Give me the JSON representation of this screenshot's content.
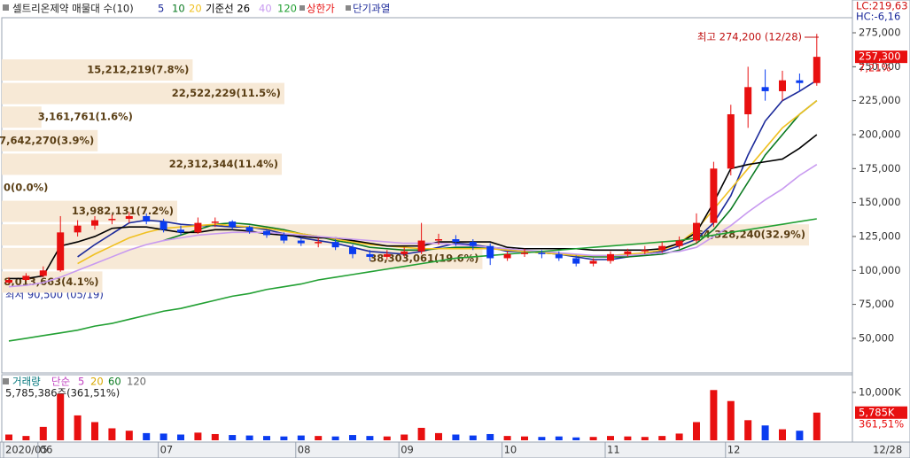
{
  "chart_data": {
    "type": "candlestick",
    "title": "셀트리온제약 매물대 수(10)",
    "categories": [
      "2020/05",
      null,
      "06",
      null,
      null,
      null,
      null,
      null,
      null,
      "07",
      null,
      null,
      null,
      null,
      null,
      null,
      null,
      "08",
      null,
      null,
      null,
      null,
      null,
      "09",
      null,
      null,
      null,
      null,
      null,
      "10",
      null,
      null,
      null,
      null,
      null,
      "11",
      null,
      null,
      null,
      null,
      null,
      null,
      "12",
      null,
      null,
      null,
      null,
      null
    ],
    "open": [
      91000,
      93000,
      96000,
      100000,
      128000,
      133000,
      137000,
      138000,
      140000,
      136000,
      130000,
      128000,
      135000,
      136000,
      132000,
      129000,
      126000,
      122000,
      120000,
      121000,
      117000,
      112000,
      110000,
      112000,
      114000,
      122000,
      123000,
      121000,
      118000,
      109000,
      112000,
      113000,
      112000,
      109000,
      105000,
      107000,
      112000,
      114000,
      115000,
      118000,
      122000,
      135000,
      175000,
      215000,
      235000,
      232000,
      240000,
      238000
    ],
    "high": [
      95000,
      98000,
      103000,
      140000,
      137000,
      140000,
      141000,
      143000,
      142000,
      138000,
      133000,
      139000,
      139000,
      137000,
      133000,
      130000,
      128000,
      124000,
      124000,
      123000,
      119000,
      115000,
      115000,
      117000,
      135000,
      127000,
      126000,
      123000,
      120000,
      114000,
      116000,
      115000,
      114000,
      111000,
      109000,
      114000,
      116000,
      118000,
      121000,
      125000,
      142000,
      180000,
      222000,
      250000,
      248000,
      247000,
      245000,
      274200
    ],
    "low": [
      90500,
      92000,
      95000,
      99000,
      125000,
      130000,
      134000,
      135000,
      134000,
      128000,
      126000,
      127000,
      132000,
      130000,
      127000,
      124000,
      120000,
      118000,
      117000,
      115000,
      109000,
      107000,
      108000,
      110000,
      112000,
      119000,
      118000,
      115000,
      104000,
      107000,
      110000,
      109000,
      107000,
      103000,
      103000,
      105000,
      110000,
      112000,
      113000,
      116000,
      120000,
      132000,
      170000,
      205000,
      225000,
      225000,
      232000,
      236000
    ],
    "close": [
      93000,
      96000,
      100000,
      128000,
      133000,
      137000,
      138000,
      140000,
      136000,
      130000,
      128000,
      135000,
      136000,
      132000,
      129000,
      126000,
      122000,
      120000,
      121000,
      117000,
      112000,
      110000,
      112000,
      114000,
      122000,
      123000,
      121000,
      118000,
      109000,
      112000,
      113000,
      112000,
      109000,
      105000,
      107000,
      112000,
      114000,
      115000,
      118000,
      122000,
      135000,
      175000,
      215000,
      235000,
      232000,
      240000,
      238000,
      257300
    ],
    "up_color": "#e81010",
    "down_color": "#0a3cf0",
    "series": [
      {
        "name": "5",
        "color": "#1c2a9a",
        "values": [
          null,
          null,
          null,
          null,
          110000,
          119000,
          127000,
          135000,
          137000,
          136000,
          134000,
          133000,
          133000,
          132000,
          132000,
          130000,
          127000,
          124000,
          122000,
          120000,
          117000,
          114000,
          113000,
          112000,
          114000,
          117000,
          120000,
          119000,
          117000,
          114000,
          114000,
          113000,
          112000,
          110000,
          108000,
          108000,
          110000,
          112000,
          114000,
          118000,
          123000,
          135000,
          155000,
          185000,
          210000,
          225000,
          232000,
          240000
        ]
      },
      {
        "name": "10",
        "color": "#0a7a20",
        "values": [
          null,
          null,
          null,
          null,
          null,
          null,
          null,
          null,
          null,
          122000,
          126000,
          130000,
          134000,
          135000,
          134000,
          132000,
          130000,
          127000,
          125000,
          122000,
          120000,
          117000,
          116000,
          115000,
          115000,
          116000,
          117000,
          117000,
          117000,
          116000,
          114000,
          113000,
          112000,
          111000,
          110000,
          110000,
          110000,
          111000,
          112000,
          115000,
          120000,
          130000,
          145000,
          165000,
          185000,
          200000,
          215000,
          225000
        ]
      },
      {
        "name": "20",
        "color": "#f0c020",
        "values": [
          null,
          null,
          null,
          null,
          105000,
          112000,
          118000,
          124000,
          128000,
          131000,
          132000,
          133000,
          134000,
          133000,
          132000,
          131000,
          129000,
          127000,
          125000,
          123000,
          121000,
          119000,
          118000,
          117000,
          116000,
          116000,
          116000,
          116000,
          116000,
          115000,
          114000,
          113000,
          112000,
          111000,
          111000,
          111000,
          112000,
          113000,
          115000,
          120000,
          130000,
          145000,
          160000,
          175000,
          190000,
          205000,
          215000,
          225000
        ]
      },
      {
        "name": "기준선 26",
        "color": "#000000",
        "values": [
          94000,
          94000,
          96000,
          118000,
          121000,
          125000,
          131000,
          132000,
          132000,
          130000,
          128000,
          128000,
          130000,
          130000,
          129000,
          127000,
          126000,
          125000,
          124000,
          124000,
          122000,
          120000,
          118000,
          118000,
          118000,
          121000,
          121000,
          121000,
          121000,
          117000,
          116000,
          116000,
          116000,
          116000,
          115000,
          115000,
          115000,
          115000,
          116000,
          120000,
          128000,
          150000,
          175000,
          178000,
          180000,
          182000,
          190000,
          200000
        ]
      },
      {
        "name": "40",
        "color": "#c89af0",
        "values": [
          88000,
          89000,
          91000,
          95000,
          100000,
          105000,
          110000,
          115000,
          119000,
          122000,
          124000,
          126000,
          127000,
          128000,
          128000,
          128000,
          127000,
          126000,
          125000,
          124000,
          123000,
          122000,
          121000,
          120000,
          120000,
          120000,
          119000,
          118000,
          117000,
          116000,
          115000,
          114000,
          113000,
          112000,
          111000,
          111000,
          111000,
          112000,
          113000,
          114000,
          117000,
          125000,
          133000,
          143000,
          152000,
          160000,
          170000,
          178000
        ]
      },
      {
        "name": "120",
        "color": "#22a033",
        "values": [
          48000,
          50000,
          52000,
          54000,
          56000,
          59000,
          61000,
          64000,
          67000,
          70000,
          72000,
          75000,
          78000,
          81000,
          83000,
          86000,
          88000,
          90000,
          93000,
          95000,
          97000,
          99000,
          101000,
          103000,
          105000,
          107000,
          109000,
          110000,
          111000,
          112000,
          113000,
          114000,
          115000,
          116000,
          117000,
          118000,
          119000,
          120000,
          121000,
          122000,
          124000,
          126000,
          128000,
          130000,
          132000,
          134000,
          136000,
          138000
        ]
      }
    ],
    "extra_legend": [
      {
        "name": "상한가",
        "color": "#e81010"
      },
      {
        "name": "단기과열",
        "color": "#1c2a9a"
      }
    ],
    "ylim": [
      24500,
      286100
    ],
    "yticks": [
      {
        "value": 275000,
        "label": "275,000"
      },
      {
        "value": 250000,
        "label": "250,000"
      },
      {
        "value": 225000,
        "label": "225,000"
      },
      {
        "value": 200000,
        "label": "200,000"
      },
      {
        "value": 175000,
        "label": "175,000"
      },
      {
        "value": 150000,
        "label": "150,000"
      },
      {
        "value": 125000,
        "label": "125,000"
      },
      {
        "value": 100000,
        "label": "100,000"
      },
      {
        "value": 75000,
        "label": "75,000"
      },
      {
        "value": 50000,
        "label": "50,000"
      }
    ],
    "high_annotation": "최고 274,200 (12/28)",
    "low_annotation": "최저 90,500 (05/19)",
    "last_price": {
      "value": 257300,
      "label": "257,300"
    },
    "change_label": "7,21%",
    "lc_label": "LC:219,63",
    "hc_label": "HC:-6,16",
    "end_date_label": "12/28",
    "volume_profile": {
      "color": "#f7e9d6",
      "values": [
        15212219,
        22522229,
        3161761,
        7642270,
        22312344,
        0,
        13982131,
        64328240,
        38303061,
        8013663
      ],
      "value_labels": [
        "15,212,219(7.8%)",
        "22,522,229(11.5%)",
        "3,161,761(1.6%)",
        "7,642,270(3.9%)",
        "22,312,344(11.4%)",
        "0(0.0%)",
        "13,982,131(7.2%)",
        "64,328,240(32.9%)",
        "38,303,061(19.6%)",
        "8,013,663(4.1%)"
      ]
    },
    "volume": {
      "title": "거래량",
      "ma_label": "단순",
      "ma_periods": [
        {
          "name": "5",
          "color": "#c040c0"
        },
        {
          "name": "20",
          "color": "#d8a800"
        },
        {
          "name": "60",
          "color": "#0a7a20"
        },
        {
          "name": "120",
          "color": "#666666"
        }
      ],
      "info": "5,785,386주(361,51%)",
      "values": [
        1200,
        900,
        2800,
        9700,
        5200,
        3800,
        2500,
        2000,
        1500,
        1400,
        1200,
        1600,
        1300,
        1100,
        1000,
        900,
        800,
        1000,
        900,
        800,
        1100,
        900,
        800,
        1200,
        2600,
        1500,
        1200,
        1000,
        1300,
        900,
        800,
        700,
        800,
        600,
        700,
        900,
        800,
        700,
        900,
        1400,
        3800,
        10500,
        8200,
        4200,
        3100,
        2300,
        2000,
        5785
      ],
      "ylim": [
        0,
        13700
      ],
      "yticks": [
        {
          "value": 10000,
          "label": "10,000K"
        }
      ],
      "last_label": "5,785K",
      "change_label": "361,51%"
    }
  }
}
